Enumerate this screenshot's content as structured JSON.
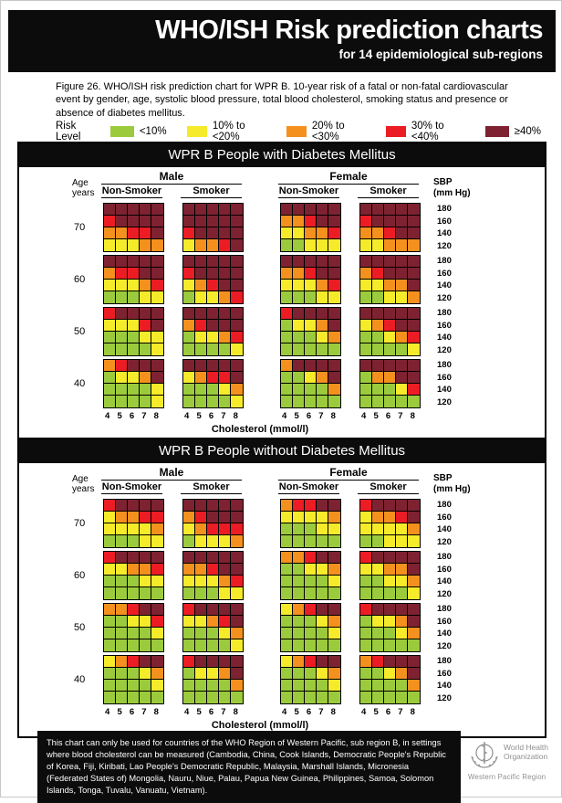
{
  "header": {
    "title": "WHO/ISH Risk prediction charts",
    "subtitle": "for 14 epidemiological sub-regions"
  },
  "caption": "Figure 26. WHO/ISH risk prediction chart for WPR B. 10-year risk of a fatal or non-fatal cardiovascular event by gender, age, systolic blood pressure, total blood cholesterol, smoking status and presence or absence of diabetes mellitus.",
  "legend": {
    "label": "Risk Level",
    "items": [
      {
        "code": "G",
        "label": "<10%"
      },
      {
        "code": "Y",
        "label": "10% to <20%"
      },
      {
        "code": "O",
        "label": "20% to <30%"
      },
      {
        "code": "R",
        "label": "30% to <40%"
      },
      {
        "code": "D",
        "label": "≥40%"
      }
    ]
  },
  "colors": {
    "G": "#9BCB3C",
    "Y": "#F5EB2B",
    "O": "#F4911E",
    "R": "#EC1C24",
    "D": "#7E2231"
  },
  "panel_labels": {
    "age_line1": "Age",
    "age_line2": "years",
    "male": "Male",
    "female": "Female",
    "nonsmoker": "Non-Smoker",
    "smoker": "Smoker",
    "sbp_line1": "SBP",
    "sbp_line2": "(mm Hg)"
  },
  "chart_data": [
    {
      "type": "heatmap",
      "title": "WPR B People with Diabetes Mellitus",
      "x": [
        4,
        5,
        6,
        7,
        8
      ],
      "xlabel": "Cholesterol (mmol/l)",
      "sbp": [
        180,
        160,
        140,
        120
      ],
      "ages": [
        "70",
        "60",
        "50",
        "40"
      ],
      "groups": [
        "male_nonsmoker",
        "male_smoker",
        "female_nonsmoker",
        "female_smoker"
      ],
      "risk_scale": {
        "G": "<10%",
        "Y": "10% to <20%",
        "O": "20% to <30%",
        "R": "30% to <40%",
        "D": "≥40%"
      },
      "cells": {
        "70": {
          "male_nonsmoker": [
            "DDDDD",
            "RDDDD",
            "OORRD",
            "YYYOO"
          ],
          "male_smoker": [
            "DDDDD",
            "DDDDD",
            "RDDDD",
            "YOORD"
          ],
          "female_nonsmoker": [
            "DDDDD",
            "OORDD",
            "YYOOR",
            "GGYYY"
          ],
          "female_smoker": [
            "DDDDD",
            "RDDDD",
            "OORDD",
            "YYOOO"
          ]
        },
        "60": {
          "male_nonsmoker": [
            "DDDDD",
            "ORRDD",
            "YYYOR",
            "GGGYY"
          ],
          "male_smoker": [
            "DDDDD",
            "RDDDD",
            "YORDD",
            "GYYOR"
          ],
          "female_nonsmoker": [
            "DDDDD",
            "OORDD",
            "YYYOR",
            "GGGYY"
          ],
          "female_smoker": [
            "DDDDD",
            "ORDDD",
            "YYOOD",
            "GGYYO"
          ]
        },
        "50": {
          "male_nonsmoker": [
            "RDDDD",
            "YYYRD",
            "GGGYY",
            "GGGGY"
          ],
          "male_smoker": [
            "DDDDD",
            "ORDDD",
            "GYYOR",
            "GGGGY"
          ],
          "female_nonsmoker": [
            "RDDDD",
            "GYYOD",
            "GGGYO",
            "GGGGG"
          ],
          "female_smoker": [
            "DDDDD",
            "YORDD",
            "GGYOR",
            "GGGGY"
          ]
        },
        "40": {
          "male_nonsmoker": [
            "ORDDD",
            "GYYOD",
            "GGGGY",
            "GGGGY"
          ],
          "male_smoker": [
            "DDDDD",
            "YORRD",
            "GGGYO",
            "GGGGY"
          ],
          "female_nonsmoker": [
            "ODDDD",
            "GGYOD",
            "GGGGO",
            "GGGGG"
          ],
          "female_smoker": [
            "DDDDD",
            "GOODD",
            "GGGYR",
            "GGGGG"
          ]
        }
      }
    },
    {
      "type": "heatmap",
      "title": "WPR B People without Diabetes Mellitus",
      "x": [
        4,
        5,
        6,
        7,
        8
      ],
      "xlabel": "Cholesterol (mmol/l)",
      "sbp": [
        180,
        160,
        140,
        120
      ],
      "ages": [
        "70",
        "60",
        "50",
        "40"
      ],
      "groups": [
        "male_nonsmoker",
        "male_smoker",
        "female_nonsmoker",
        "female_smoker"
      ],
      "risk_scale": {
        "G": "<10%",
        "Y": "10% to <20%",
        "O": "20% to <30%",
        "R": "30% to <40%",
        "D": "≥40%"
      },
      "cells": {
        "70": {
          "male_nonsmoker": [
            "RDDDD",
            "YOORR",
            "YYYYO",
            "GGGYY"
          ],
          "male_smoker": [
            "DDDDD",
            "ORDDD",
            "YORRR",
            "GYYYO"
          ],
          "female_nonsmoker": [
            "ORRDD",
            "YYYYO",
            "GGGYY",
            "GGGGG"
          ],
          "female_smoker": [
            "RDDDD",
            "YOORD",
            "YYYYO",
            "GGYYY"
          ]
        },
        "60": {
          "male_nonsmoker": [
            "RDDDD",
            "YYOOR",
            "GGGYY",
            "GGGGG"
          ],
          "male_smoker": [
            "DDDDD",
            "OORDD",
            "YYYOR",
            "GGGYY"
          ],
          "female_nonsmoker": [
            "OORDD",
            "GGYYO",
            "GGGGY",
            "GGGGG"
          ],
          "female_smoker": [
            "RDDDD",
            "YYOOD",
            "GGYYO",
            "GGGGY"
          ]
        },
        "50": {
          "male_nonsmoker": [
            "OORDD",
            "GGYYR",
            "GGGGY",
            "GGGGG"
          ],
          "male_smoker": [
            "RDDDD",
            "YYORD",
            "GGGYO",
            "GGGGY"
          ],
          "female_nonsmoker": [
            "YORDD",
            "GGGYO",
            "GGGGY",
            "GGGGG"
          ],
          "female_smoker": [
            "RDDDD",
            "GYYOD",
            "GGGYO",
            "GGGGG"
          ]
        },
        "40": {
          "male_nonsmoker": [
            "YORDD",
            "GGGYO",
            "GGGGY",
            "GGGGG"
          ],
          "male_smoker": [
            "RDDDD",
            "GYYOD",
            "GGGGO",
            "GGGGG"
          ],
          "female_nonsmoker": [
            "YORDD",
            "GGGYO",
            "GGGGY",
            "GGGGG"
          ],
          "female_smoker": [
            "ORDDD",
            "GGYOD",
            "GGGGO",
            "GGGGG"
          ]
        }
      }
    }
  ],
  "footer": {
    "note": "This chart can only be used for countries of the WHO Region of Western Pacific, sub region B, in settings where blood cholesterol can be measured (Cambodia, China, Cook Islands, Democratic People's Republic of Korea, Fiji, Kiribati, Lao People's Democratic Republic, Malaysia, Marshall Islands, Micronesia (Federated States of) Mongolia, Nauru, Niue, Palau, Papua New Guinea, Philippines, Samoa, Solomon Islands, Tonga, Tuvalu, Vanuatu, Vietnam).",
    "logo": {
      "line1": "World Health",
      "line2": "Organization",
      "line3": "Western Pacific Region"
    }
  }
}
